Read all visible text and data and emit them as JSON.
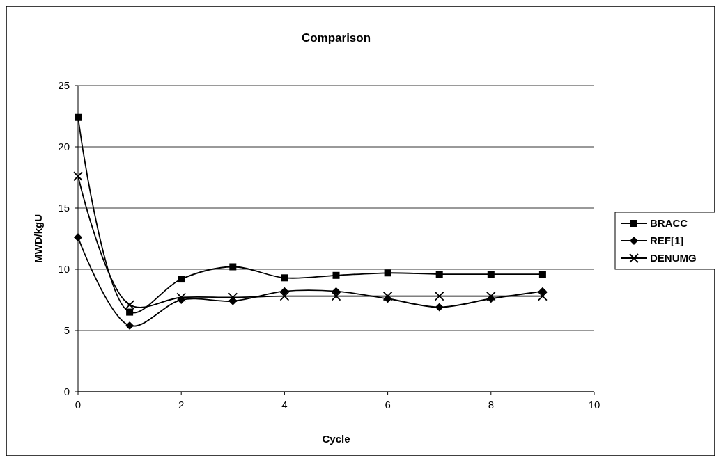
{
  "chart_data": {
    "type": "line",
    "title": "Comparison",
    "xlabel": "Cycle",
    "ylabel": "MWD/kgU",
    "x": [
      0,
      1,
      2,
      3,
      4,
      5,
      6,
      7,
      8,
      9
    ],
    "xlim": [
      0,
      10
    ],
    "xticks": [
      0,
      2,
      4,
      6,
      8,
      10
    ],
    "ylim": [
      0,
      25
    ],
    "yticks": [
      0,
      5,
      10,
      15,
      20,
      25
    ],
    "grid": "y",
    "legend": "right",
    "series": [
      {
        "name": "BRACC",
        "color": "#000000",
        "marker": "square",
        "values": [
          22.4,
          6.5,
          9.2,
          10.2,
          9.3,
          9.5,
          9.7,
          9.6,
          9.6,
          9.6
        ]
      },
      {
        "name": "REF[1]",
        "color": "#000000",
        "marker": "diamond",
        "values": [
          12.6,
          5.4,
          7.5,
          7.4,
          8.2,
          8.2,
          7.6,
          6.9,
          7.6,
          8.2
        ]
      },
      {
        "name": "DENUMG",
        "color": "#000000",
        "marker": "cross",
        "values": [
          17.6,
          7.1,
          7.7,
          7.7,
          7.8,
          7.8,
          7.8,
          7.8,
          7.8,
          7.8
        ]
      }
    ]
  }
}
